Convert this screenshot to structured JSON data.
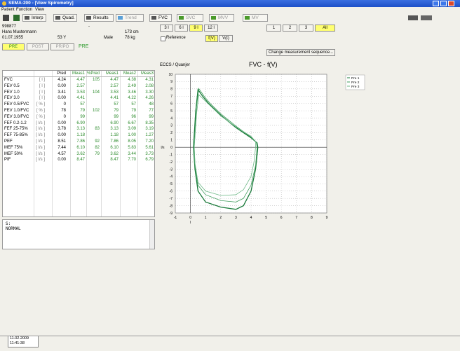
{
  "window": {
    "title": "SEMA-200 - [View Spirometry]"
  },
  "menu": [
    "Patient",
    "Function",
    "View"
  ],
  "toolbar": [
    "Interp",
    "Quad.",
    "Results",
    "Trend",
    "FVC",
    "SVC",
    "MVV",
    "MV"
  ],
  "patient": {
    "id": "998877",
    "name": "Hans Mustermann",
    "birth": "01.07.1955",
    "age": "53 Y",
    "dash": "-",
    "sex": "Male",
    "height": "173 cm",
    "weight": "78 kg"
  },
  "phase_tabs": [
    "PRE",
    "POST",
    "PR/PO"
  ],
  "phase": "PRE",
  "scale_buttons": [
    "3 l",
    "6 l",
    "9 l",
    "12 l"
  ],
  "reference": "Reference",
  "view_buttons": [
    "f(V)",
    "V(t)"
  ],
  "measure_buttons": [
    "1",
    "2",
    "3",
    "All"
  ],
  "sequence_button": "Change measurement sequence...",
  "norm": "ECCS / Quanjer",
  "table": {
    "header": [
      "Pred",
      "Meas1",
      "%Pred",
      "Meas1",
      "Meas2",
      "Meas3"
    ],
    "rows": [
      [
        "FVC",
        "[ l ]",
        "4.24",
        "4.47",
        "105",
        "4.47",
        "4.38",
        "4.31"
      ],
      [
        "FEV 0.5",
        "[ l ]",
        "0.00",
        "2.57",
        null,
        "2.57",
        "2.49",
        "2.08"
      ],
      [
        "FEV 1.0",
        "[ l ]",
        "3.41",
        "3.53",
        "104",
        "3.53",
        "3.46",
        "3.30"
      ],
      [
        "FEV 3.0",
        "[ l ]",
        "0.00",
        "4.41",
        null,
        "4.41",
        "4.22",
        "4.26"
      ],
      [
        "FEV 0.5/FVC",
        "[ % ]",
        "0",
        "57",
        null,
        "57",
        "57",
        "48"
      ],
      [
        "FEV 1.0/FVC",
        "[ % ]",
        "78",
        "79",
        "102",
        "79",
        "79",
        "77"
      ],
      [
        "FEV 3.0/FVC",
        "[ % ]",
        "0",
        "99",
        null,
        "99",
        "96",
        "99"
      ],
      [
        "FEF 0.2-1.2",
        "[ l/s ]",
        "0.00",
        "6.90",
        null,
        "6.90",
        "6.67",
        "8.35"
      ],
      [
        "FEF 25-75%",
        "[ l/s ]",
        "3.78",
        "3.13",
        "83",
        "3.13",
        "3.09",
        "3.19"
      ],
      [
        "FEF 75-85%",
        "[ l/s ]",
        "0.00",
        "1.18",
        null,
        "1.18",
        "1.00",
        "1.27"
      ],
      [
        "PEF",
        "[ l/s ]",
        "8.51",
        "7.86",
        "92",
        "7.86",
        "8.05",
        "7.20"
      ],
      [
        "MEF 75%",
        "[ l/s ]",
        "7.44",
        "6.10",
        "82",
        "6.10",
        "5.83",
        "5.61"
      ],
      [
        "MEF 50%",
        "[ l/s ]",
        "4.57",
        "3.62",
        "79",
        "3.62",
        "3.44",
        "3.73"
      ],
      [
        "PIF",
        "[ l/s ]",
        "0.00",
        "8.47",
        null,
        "8.47",
        "7.70",
        "6.79"
      ]
    ]
  },
  "comment": [
    "S:",
    "NORMAL"
  ],
  "chart_data": {
    "type": "line",
    "title": "FVC - f(V)",
    "x_label": "l",
    "y_label": "l/s",
    "xlim": [
      -1,
      9
    ],
    "xticks": [
      -1,
      0,
      1,
      2,
      3,
      4,
      5,
      6,
      7,
      8,
      9
    ],
    "ylim": [
      -9,
      10
    ],
    "yticks": [
      -9,
      -8,
      -7,
      -6,
      -5,
      -4,
      -3,
      -2,
      -1,
      0,
      1,
      2,
      3,
      4,
      5,
      6,
      7,
      8,
      9,
      10
    ],
    "grid": true,
    "series": [
      {
        "name": "Pre 1",
        "color": "#1a7a3a",
        "x": [
          0.2,
          0.35,
          0.5,
          0.8,
          1.2,
          2,
          3,
          4,
          4.4,
          4.45,
          4.3,
          4,
          3.5,
          3,
          2,
          1,
          0.5,
          0.3,
          0.2
        ],
        "y": [
          0,
          5,
          7.9,
          7,
          6,
          4.4,
          2.7,
          1.3,
          0.6,
          0,
          -3,
          -6,
          -8,
          -8.5,
          -8.2,
          -7.5,
          -6,
          -3,
          0
        ]
      },
      {
        "name": "Pre 2",
        "color": "#3f9c5c",
        "x": [
          0.25,
          0.4,
          0.55,
          0.9,
          1.3,
          2,
          3,
          4,
          4.35,
          4.4,
          4.3,
          4,
          3.5,
          3,
          2,
          1,
          0.5,
          0.3,
          0.25
        ],
        "y": [
          0,
          5.5,
          8.05,
          7,
          6,
          4.6,
          2.9,
          1.4,
          0.7,
          0,
          -2.5,
          -5.2,
          -7,
          -7.5,
          -7.3,
          -6.5,
          -5.2,
          -2.5,
          0
        ]
      },
      {
        "name": "Pre 3",
        "color": "#6cb886",
        "x": [
          0.25,
          0.4,
          0.55,
          0.9,
          1.3,
          2,
          3,
          4,
          4.3,
          4.3,
          4.2,
          4,
          3.5,
          3,
          2,
          1,
          0.5,
          0.3,
          0.25
        ],
        "y": [
          0,
          4.5,
          7.2,
          6.5,
          5.7,
          4.3,
          2.8,
          1.5,
          0.8,
          0,
          -2,
          -4,
          -5.8,
          -6.5,
          -6.6,
          -6,
          -4.8,
          -2.2,
          0
        ]
      }
    ]
  },
  "status": {
    "date": "11.02.2009",
    "time": "11:41:38"
  }
}
